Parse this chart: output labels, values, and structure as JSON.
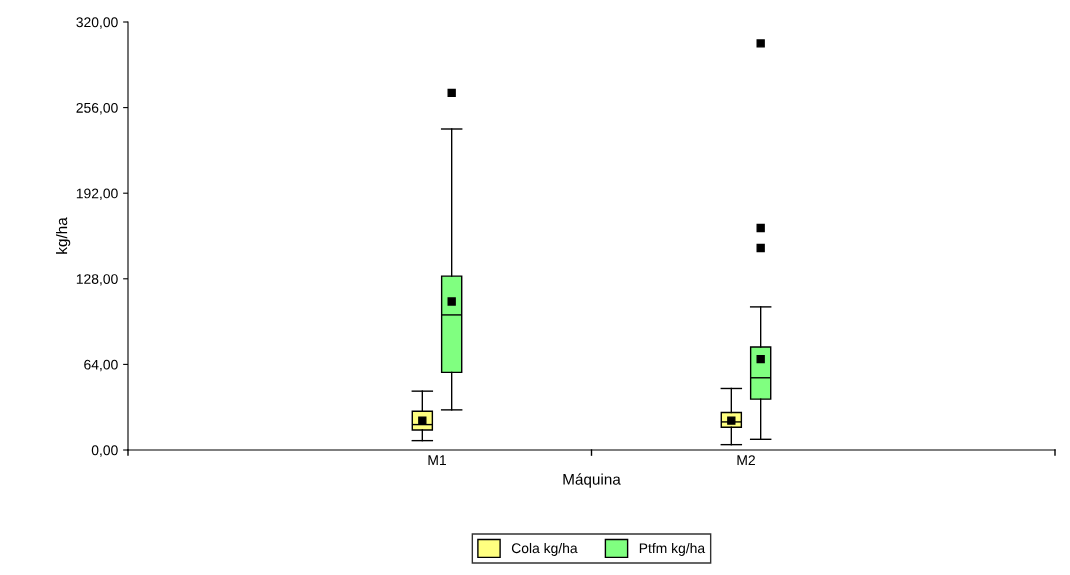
{
  "chart_data": {
    "type": "box",
    "xlabel": "Máquina",
    "ylabel": "kg/ha",
    "categories": [
      "M1",
      "M2"
    ],
    "series": [
      {
        "name": "Cola kg/ha",
        "color": "#ffff80",
        "boxes": [
          {
            "low": 7,
            "q1": 15,
            "median": 19,
            "q3": 29,
            "high": 44,
            "mean": 22
          },
          {
            "low": 4,
            "q1": 17,
            "median": 21,
            "q3": 28,
            "high": 46,
            "mean": 22
          }
        ]
      },
      {
        "name": "Ptfm kg/ha",
        "color": "#80ff80",
        "boxes": [
          {
            "low": 30,
            "q1": 58,
            "median": 101,
            "q3": 130,
            "high": 240,
            "mean": 111,
            "outliers": [
              267
            ]
          },
          {
            "low": 8,
            "q1": 38,
            "median": 54,
            "q3": 77,
            "high": 107,
            "mean": 68,
            "outliers": [
              151,
              166,
              304
            ]
          }
        ]
      }
    ],
    "ylim": [
      0,
      320
    ],
    "yticks": [
      {
        "value": 0,
        "label": "0,00"
      },
      {
        "value": 64,
        "label": "64,00"
      },
      {
        "value": 128,
        "label": "128,00"
      },
      {
        "value": 192,
        "label": "192,00"
      },
      {
        "value": 256,
        "label": "256,00"
      },
      {
        "value": 320,
        "label": "320,00"
      }
    ],
    "grid": false,
    "legend": "bottom",
    "marker": "square"
  }
}
